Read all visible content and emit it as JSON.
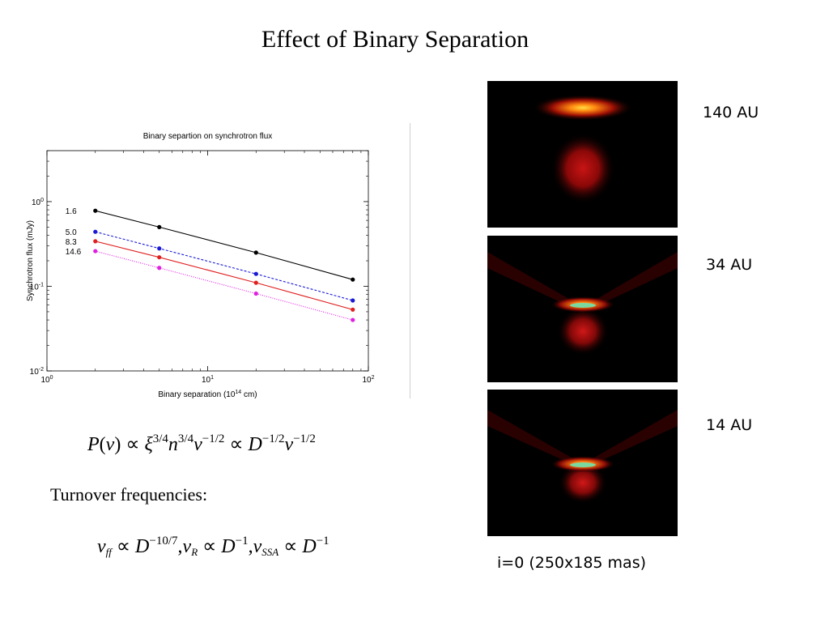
{
  "page": {
    "title": "Effect of Binary Separation"
  },
  "chart_data": {
    "type": "line",
    "title": "Binary separtion on synchrotron flux",
    "xlabel": "Binary separation (10",
    "xlabel_exp": "14",
    "xlabel_tail": " cm)",
    "ylabel": "Synchrotron flux (mJy)",
    "xscale": "log",
    "yscale": "log",
    "xlim": [
      1,
      100
    ],
    "ylim": [
      0.01,
      4
    ],
    "x_ticks": [
      {
        "v": 1,
        "base": "10",
        "exp": "0"
      },
      {
        "v": 10,
        "base": "10",
        "exp": "1"
      },
      {
        "v": 100,
        "base": "10",
        "exp": "2"
      }
    ],
    "y_ticks": [
      {
        "v": 1,
        "base": "10",
        "exp": "0"
      },
      {
        "v": 0.1,
        "base": "10",
        "exp": "-1"
      },
      {
        "v": 0.01,
        "base": "10",
        "exp": "-2"
      }
    ],
    "x": [
      2,
      5,
      20,
      80
    ],
    "legend_placement": "left",
    "series": [
      {
        "name": "1.6",
        "color": "#000000",
        "dash": "solid",
        "values": [
          0.78,
          0.5,
          0.25,
          0.12
        ]
      },
      {
        "name": "5.0",
        "color": "#1a1ad6",
        "dash": "dashed",
        "values": [
          0.44,
          0.28,
          0.14,
          0.068
        ]
      },
      {
        "name": "8.3",
        "color": "#e02020",
        "dash": "solid",
        "values": [
          0.34,
          0.22,
          0.11,
          0.053
        ]
      },
      {
        "name": "14.6",
        "color": "#e020e0",
        "dash": "dotted",
        "values": [
          0.26,
          0.165,
          0.082,
          0.04
        ]
      }
    ]
  },
  "formulas": {
    "f1": {
      "a": "P",
      "b": "(",
      "c": "ν",
      "d": ") ∝ ",
      "e": "ξ",
      "e_sup": "3/4",
      "f": "n",
      "f_sup": "3/4",
      "g": "ν",
      "g_sup": "−1/2",
      "h": " ∝ ",
      "i": "D",
      "i_sup": "−1/2",
      "j": "ν",
      "j_sup": "−1/2"
    },
    "turnover_label": "Turnover frequencies:",
    "f2": {
      "a": "ν",
      "a_sub": "ff",
      "b": " ∝ ",
      "c": "D",
      "c_sup": "−10/7",
      "d": ",",
      "e": "ν",
      "e_sub": "R",
      "f": " ∝ ",
      "g": "D",
      "g_sup": "−1",
      "h": ",",
      "i": "ν",
      "i_sub": "SSA",
      "j": " ∝ ",
      "k": "D",
      "k_sup": "−1"
    }
  },
  "images": {
    "labels": [
      "140 AU",
      "34 AU",
      "14 AU"
    ],
    "caption": "i=0 (250x185 mas)"
  }
}
